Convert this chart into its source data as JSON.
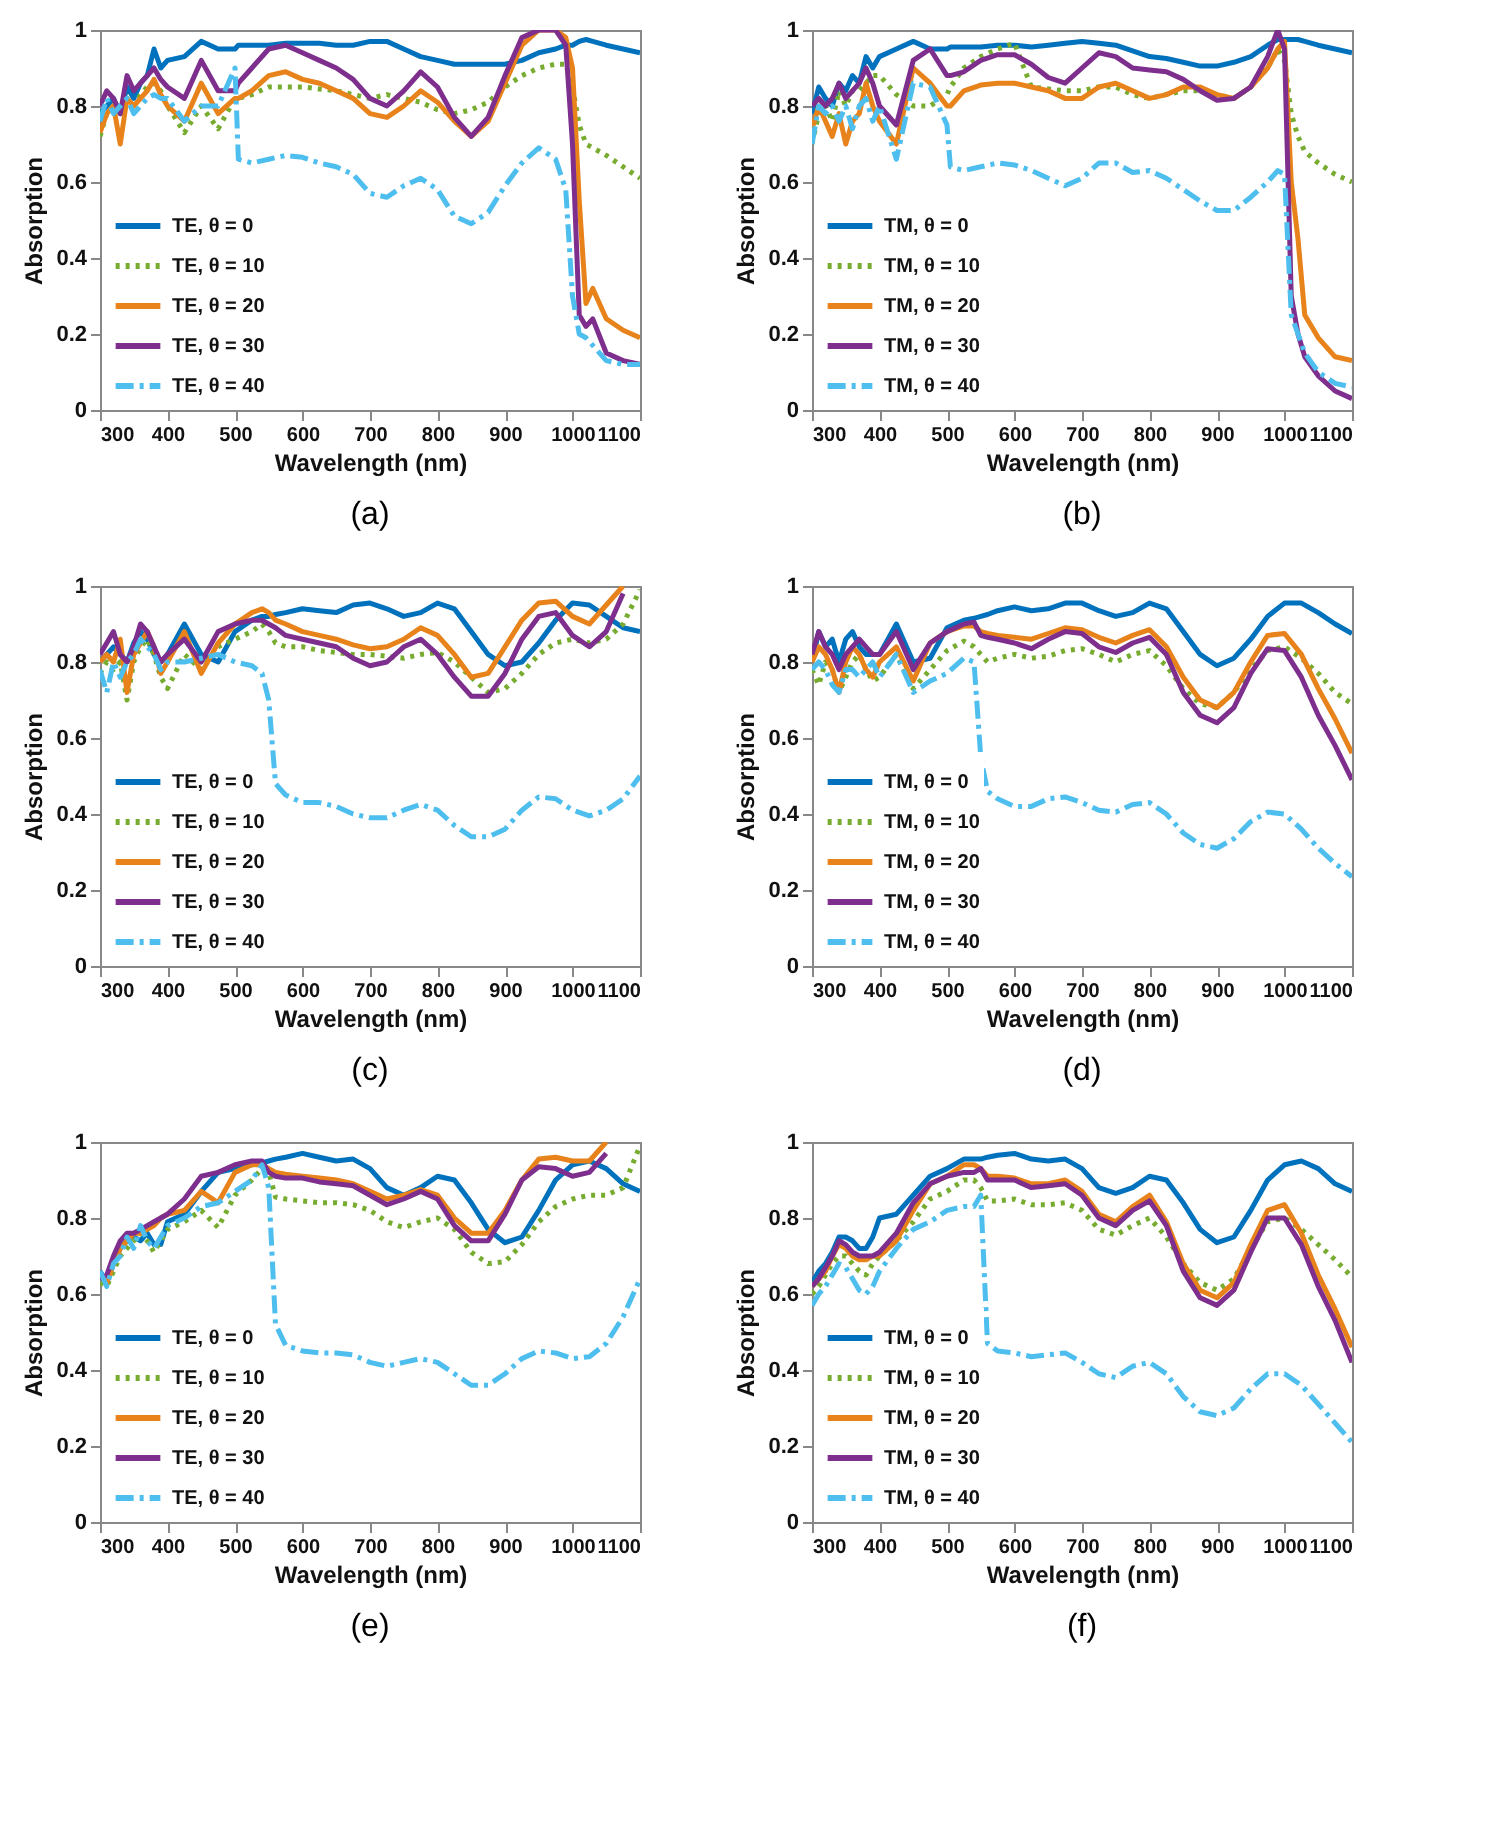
{
  "chart_data": [
    {
      "type": "line",
      "title": "(a)",
      "xlabel": "Wavelength (nm)",
      "ylabel": "Absorption",
      "xlim": [
        300,
        1100
      ],
      "ylim": [
        0,
        1
      ],
      "xticks": [
        300,
        400,
        500,
        600,
        700,
        800,
        900,
        1000,
        1100
      ],
      "yticks": [
        0,
        0.2,
        0.4,
        0.6,
        0.8,
        1
      ],
      "legend": "bottom left",
      "x": [
        300,
        310,
        320,
        330,
        340,
        350,
        360,
        370,
        380,
        390,
        400,
        425,
        450,
        475,
        500,
        505,
        525,
        550,
        575,
        600,
        625,
        650,
        675,
        700,
        725,
        750,
        775,
        800,
        825,
        850,
        875,
        900,
        925,
        950,
        975,
        990,
        1000,
        1010,
        1020,
        1030,
        1050,
        1075,
        1100
      ],
      "series": [
        {
          "name": "TE, θ = 0",
          "color": "#0072bd",
          "line_style": "solid",
          "values": [
            0.78,
            0.8,
            0.82,
            0.78,
            0.85,
            0.82,
            0.86,
            0.88,
            0.95,
            0.9,
            0.92,
            0.93,
            0.97,
            0.95,
            0.95,
            0.96,
            0.96,
            0.96,
            0.965,
            0.965,
            0.965,
            0.96,
            0.96,
            0.97,
            0.97,
            0.95,
            0.93,
            0.92,
            0.91,
            0.91,
            0.91,
            0.91,
            0.92,
            0.94,
            0.95,
            0.96,
            0.96,
            0.97,
            0.975,
            0.97,
            0.96,
            0.95,
            0.94
          ]
        },
        {
          "name": "TE, θ = 10",
          "color": "#77ac30",
          "line_style": "dotted",
          "values": [
            0.72,
            0.78,
            0.8,
            0.78,
            0.82,
            0.8,
            0.83,
            0.85,
            0.86,
            0.84,
            0.8,
            0.73,
            0.8,
            0.74,
            0.82,
            0.82,
            0.83,
            0.85,
            0.85,
            0.85,
            0.845,
            0.84,
            0.83,
            0.82,
            0.83,
            0.82,
            0.81,
            0.79,
            0.78,
            0.79,
            0.81,
            0.85,
            0.88,
            0.9,
            0.91,
            0.91,
            0.85,
            0.75,
            0.7,
            0.69,
            0.67,
            0.64,
            0.61
          ]
        },
        {
          "name": "TE, θ = 20",
          "color": "#e8821a",
          "line_style": "solid",
          "values": [
            0.73,
            0.78,
            0.8,
            0.7,
            0.82,
            0.8,
            0.82,
            0.84,
            0.87,
            0.83,
            0.8,
            0.76,
            0.86,
            0.78,
            0.82,
            0.82,
            0.84,
            0.88,
            0.89,
            0.87,
            0.86,
            0.84,
            0.82,
            0.78,
            0.77,
            0.8,
            0.84,
            0.81,
            0.76,
            0.72,
            0.76,
            0.86,
            0.96,
            1.0,
            1.0,
            0.98,
            0.9,
            0.55,
            0.28,
            0.32,
            0.24,
            0.21,
            0.19
          ]
        },
        {
          "name": "TE, θ = 30",
          "color": "#7e2f8e",
          "line_style": "solid",
          "values": [
            0.8,
            0.84,
            0.82,
            0.78,
            0.88,
            0.84,
            0.86,
            0.88,
            0.9,
            0.87,
            0.85,
            0.82,
            0.92,
            0.84,
            0.84,
            0.86,
            0.9,
            0.95,
            0.96,
            0.94,
            0.92,
            0.9,
            0.87,
            0.82,
            0.8,
            0.84,
            0.89,
            0.85,
            0.77,
            0.72,
            0.77,
            0.88,
            0.98,
            1.0,
            1.0,
            0.96,
            0.7,
            0.25,
            0.22,
            0.24,
            0.15,
            0.13,
            0.12
          ]
        },
        {
          "name": "TE, θ = 40",
          "color": "#4dbeee",
          "line_style": "dashed",
          "values": [
            0.76,
            0.82,
            0.78,
            0.8,
            0.82,
            0.78,
            0.8,
            0.82,
            0.83,
            0.82,
            0.82,
            0.76,
            0.8,
            0.8,
            0.9,
            0.66,
            0.65,
            0.66,
            0.67,
            0.665,
            0.65,
            0.64,
            0.62,
            0.57,
            0.56,
            0.59,
            0.61,
            0.58,
            0.51,
            0.49,
            0.52,
            0.59,
            0.65,
            0.69,
            0.66,
            0.58,
            0.3,
            0.2,
            0.19,
            0.17,
            0.13,
            0.12,
            0.12
          ]
        }
      ]
    },
    {
      "type": "line",
      "title": "(b)",
      "xlabel": "Wavelength (nm)",
      "ylabel": "Absorption",
      "xlim": [
        300,
        1100
      ],
      "ylim": [
        0,
        1
      ],
      "xticks": [
        300,
        400,
        500,
        600,
        700,
        800,
        900,
        1000,
        1100
      ],
      "yticks": [
        0,
        0.2,
        0.4,
        0.6,
        0.8,
        1
      ],
      "legend": "bottom left",
      "x": [
        300,
        310,
        320,
        330,
        340,
        350,
        360,
        370,
        380,
        390,
        400,
        425,
        450,
        475,
        500,
        505,
        525,
        550,
        575,
        600,
        625,
        650,
        675,
        700,
        725,
        750,
        775,
        800,
        825,
        850,
        875,
        900,
        925,
        950,
        975,
        990,
        1000,
        1010,
        1020,
        1030,
        1050,
        1075,
        1100
      ],
      "series": [
        {
          "name": "TM, θ = 0",
          "color": "#0072bd",
          "line_style": "solid",
          "values": [
            0.78,
            0.85,
            0.82,
            0.8,
            0.86,
            0.84,
            0.88,
            0.86,
            0.93,
            0.9,
            0.93,
            0.95,
            0.97,
            0.95,
            0.95,
            0.955,
            0.955,
            0.955,
            0.96,
            0.96,
            0.955,
            0.96,
            0.965,
            0.97,
            0.965,
            0.96,
            0.945,
            0.93,
            0.925,
            0.915,
            0.905,
            0.905,
            0.915,
            0.93,
            0.96,
            0.975,
            0.975,
            0.975,
            0.975,
            0.97,
            0.96,
            0.95,
            0.94
          ]
        },
        {
          "name": "TM, θ = 10",
          "color": "#77ac30",
          "line_style": "dotted",
          "values": [
            0.7,
            0.78,
            0.8,
            0.76,
            0.84,
            0.8,
            0.84,
            0.84,
            0.86,
            0.88,
            0.88,
            0.83,
            0.8,
            0.8,
            0.83,
            0.85,
            0.9,
            0.93,
            0.95,
            0.965,
            0.85,
            0.845,
            0.84,
            0.84,
            0.85,
            0.85,
            0.83,
            0.82,
            0.83,
            0.84,
            0.84,
            0.83,
            0.82,
            0.85,
            0.9,
            0.95,
            0.92,
            0.78,
            0.72,
            0.68,
            0.65,
            0.62,
            0.6
          ]
        },
        {
          "name": "TM, θ = 20",
          "color": "#e8821a",
          "line_style": "solid",
          "values": [
            0.74,
            0.8,
            0.76,
            0.72,
            0.78,
            0.7,
            0.76,
            0.78,
            0.86,
            0.8,
            0.76,
            0.7,
            0.9,
            0.86,
            0.8,
            0.8,
            0.84,
            0.855,
            0.86,
            0.86,
            0.85,
            0.84,
            0.82,
            0.82,
            0.85,
            0.86,
            0.84,
            0.82,
            0.83,
            0.85,
            0.85,
            0.83,
            0.82,
            0.85,
            0.9,
            0.95,
            0.97,
            0.6,
            0.45,
            0.25,
            0.19,
            0.14,
            0.13
          ]
        },
        {
          "name": "TM, θ = 30",
          "color": "#7e2f8e",
          "line_style": "solid",
          "values": [
            0.8,
            0.82,
            0.8,
            0.82,
            0.86,
            0.82,
            0.84,
            0.86,
            0.9,
            0.86,
            0.8,
            0.75,
            0.92,
            0.95,
            0.88,
            0.88,
            0.89,
            0.92,
            0.935,
            0.935,
            0.91,
            0.875,
            0.86,
            0.9,
            0.94,
            0.93,
            0.9,
            0.895,
            0.89,
            0.87,
            0.84,
            0.815,
            0.82,
            0.85,
            0.93,
            1.0,
            0.95,
            0.3,
            0.2,
            0.14,
            0.09,
            0.05,
            0.03
          ]
        },
        {
          "name": "TM, θ = 40",
          "color": "#4dbeee",
          "line_style": "dashed",
          "values": [
            0.7,
            0.8,
            0.78,
            0.8,
            0.76,
            0.8,
            0.74,
            0.8,
            0.82,
            0.76,
            0.8,
            0.66,
            0.86,
            0.85,
            0.75,
            0.64,
            0.63,
            0.64,
            0.65,
            0.645,
            0.63,
            0.61,
            0.59,
            0.61,
            0.65,
            0.65,
            0.625,
            0.63,
            0.61,
            0.58,
            0.55,
            0.525,
            0.525,
            0.56,
            0.6,
            0.63,
            0.62,
            0.25,
            0.2,
            0.15,
            0.1,
            0.07,
            0.06
          ]
        }
      ]
    },
    {
      "type": "line",
      "title": "(c)",
      "xlabel": "Wavelength (nm)",
      "ylabel": "Absorption",
      "xlim": [
        300,
        1100
      ],
      "ylim": [
        0,
        1
      ],
      "xticks": [
        300,
        400,
        500,
        600,
        700,
        800,
        900,
        1000,
        1100
      ],
      "yticks": [
        0,
        0.2,
        0.4,
        0.6,
        0.8,
        1
      ],
      "legend": "bottom left",
      "x": [
        300,
        310,
        320,
        330,
        340,
        350,
        360,
        370,
        380,
        390,
        400,
        425,
        450,
        475,
        500,
        525,
        540,
        550,
        560,
        575,
        600,
        625,
        650,
        675,
        700,
        725,
        750,
        775,
        800,
        825,
        850,
        875,
        900,
        925,
        950,
        975,
        1000,
        1025,
        1050,
        1075,
        1100
      ],
      "series": [
        {
          "name": "TE, θ = 0",
          "color": "#0072bd",
          "line_style": "solid",
          "values": [
            0.8,
            0.82,
            0.84,
            0.82,
            0.8,
            0.85,
            0.88,
            0.86,
            0.82,
            0.8,
            0.82,
            0.9,
            0.82,
            0.8,
            0.88,
            0.91,
            0.92,
            0.92,
            0.925,
            0.93,
            0.94,
            0.935,
            0.93,
            0.95,
            0.955,
            0.94,
            0.92,
            0.93,
            0.955,
            0.94,
            0.88,
            0.82,
            0.79,
            0.8,
            0.85,
            0.91,
            0.955,
            0.95,
            0.92,
            0.89,
            0.88
          ]
        },
        {
          "name": "TE, θ = 10",
          "color": "#77ac30",
          "line_style": "dotted",
          "values": [
            0.77,
            0.8,
            0.78,
            0.8,
            0.7,
            0.8,
            0.84,
            0.86,
            0.82,
            0.76,
            0.73,
            0.82,
            0.78,
            0.84,
            0.86,
            0.88,
            0.9,
            0.88,
            0.85,
            0.84,
            0.84,
            0.83,
            0.825,
            0.82,
            0.82,
            0.815,
            0.81,
            0.82,
            0.825,
            0.8,
            0.76,
            0.72,
            0.73,
            0.77,
            0.82,
            0.85,
            0.86,
            0.85,
            0.86,
            0.9,
            0.99
          ]
        },
        {
          "name": "TE, θ = 20",
          "color": "#e8821a",
          "line_style": "solid",
          "values": [
            0.8,
            0.82,
            0.8,
            0.86,
            0.72,
            0.82,
            0.85,
            0.88,
            0.84,
            0.77,
            0.8,
            0.88,
            0.77,
            0.85,
            0.9,
            0.93,
            0.94,
            0.93,
            0.91,
            0.9,
            0.88,
            0.87,
            0.86,
            0.845,
            0.835,
            0.84,
            0.86,
            0.89,
            0.87,
            0.82,
            0.76,
            0.77,
            0.84,
            0.91,
            0.955,
            0.96,
            0.92,
            0.9,
            0.95,
            1.0,
            null
          ]
        },
        {
          "name": "TE, θ = 30",
          "color": "#7e2f8e",
          "line_style": "solid",
          "values": [
            0.82,
            0.85,
            0.88,
            0.82,
            0.8,
            0.84,
            0.9,
            0.88,
            0.84,
            0.8,
            0.82,
            0.86,
            0.8,
            0.88,
            0.9,
            0.91,
            0.91,
            0.9,
            0.89,
            0.87,
            0.86,
            0.85,
            0.84,
            0.81,
            0.79,
            0.8,
            0.84,
            0.86,
            0.82,
            0.76,
            0.71,
            0.71,
            0.77,
            0.86,
            0.92,
            0.93,
            0.87,
            0.84,
            0.88,
            0.98,
            null
          ]
        },
        {
          "name": "TE, θ = 40",
          "color": "#4dbeee",
          "line_style": "dashed",
          "values": [
            0.78,
            0.72,
            0.8,
            0.76,
            0.8,
            0.82,
            0.86,
            0.84,
            0.82,
            0.78,
            0.8,
            0.8,
            0.81,
            0.82,
            0.8,
            0.79,
            0.77,
            0.7,
            0.48,
            0.45,
            0.43,
            0.43,
            0.42,
            0.4,
            0.39,
            0.39,
            0.41,
            0.425,
            0.41,
            0.37,
            0.34,
            0.34,
            0.36,
            0.41,
            0.445,
            0.44,
            0.41,
            0.395,
            0.41,
            0.44,
            0.5
          ]
        }
      ]
    },
    {
      "type": "line",
      "title": "(d)",
      "xlabel": "Wavelength (nm)",
      "ylabel": "Absorption",
      "xlim": [
        300,
        1100
      ],
      "ylim": [
        0,
        1
      ],
      "xticks": [
        300,
        400,
        500,
        600,
        700,
        800,
        900,
        1000,
        1100
      ],
      "yticks": [
        0,
        0.2,
        0.4,
        0.6,
        0.8,
        1
      ],
      "legend": "bottom left",
      "x": [
        300,
        310,
        320,
        330,
        340,
        350,
        360,
        370,
        380,
        390,
        400,
        425,
        450,
        475,
        500,
        525,
        540,
        550,
        560,
        575,
        600,
        625,
        650,
        675,
        700,
        725,
        750,
        775,
        800,
        825,
        850,
        875,
        900,
        925,
        950,
        975,
        1000,
        1025,
        1050,
        1075,
        1100
      ],
      "series": [
        {
          "name": "TM, θ = 0",
          "color": "#0072bd",
          "line_style": "solid",
          "values": [
            0.8,
            0.88,
            0.84,
            0.86,
            0.8,
            0.86,
            0.88,
            0.84,
            0.82,
            0.82,
            0.82,
            0.9,
            0.8,
            0.81,
            0.89,
            0.91,
            0.915,
            0.92,
            0.925,
            0.935,
            0.945,
            0.935,
            0.94,
            0.955,
            0.955,
            0.935,
            0.92,
            0.93,
            0.955,
            0.94,
            0.88,
            0.82,
            0.79,
            0.81,
            0.86,
            0.92,
            0.955,
            0.955,
            0.93,
            0.9,
            0.875
          ]
        },
        {
          "name": "TM, θ = 10",
          "color": "#77ac30",
          "line_style": "dotted",
          "values": [
            0.78,
            0.74,
            0.8,
            0.78,
            0.72,
            0.76,
            0.8,
            0.82,
            0.78,
            0.75,
            0.76,
            0.82,
            0.73,
            0.78,
            0.83,
            0.855,
            0.84,
            0.82,
            0.8,
            0.81,
            0.82,
            0.81,
            0.815,
            0.83,
            0.835,
            0.82,
            0.8,
            0.82,
            0.83,
            0.79,
            0.73,
            0.69,
            0.68,
            0.72,
            0.78,
            0.83,
            0.84,
            0.81,
            0.77,
            0.72,
            0.69
          ]
        },
        {
          "name": "TM, θ = 20",
          "color": "#e8821a",
          "line_style": "solid",
          "values": [
            0.8,
            0.84,
            0.82,
            0.78,
            0.72,
            0.8,
            0.84,
            0.82,
            0.78,
            0.76,
            0.8,
            0.84,
            0.75,
            0.85,
            0.88,
            0.895,
            0.895,
            0.88,
            0.875,
            0.87,
            0.865,
            0.86,
            0.875,
            0.89,
            0.885,
            0.865,
            0.85,
            0.87,
            0.885,
            0.84,
            0.76,
            0.7,
            0.68,
            0.72,
            0.8,
            0.87,
            0.875,
            0.82,
            0.73,
            0.65,
            0.56
          ]
        },
        {
          "name": "TM, θ = 30",
          "color": "#7e2f8e",
          "line_style": "solid",
          "values": [
            0.82,
            0.88,
            0.84,
            0.82,
            0.78,
            0.82,
            0.84,
            0.86,
            0.84,
            0.82,
            0.82,
            0.88,
            0.78,
            0.85,
            0.88,
            0.9,
            0.905,
            0.87,
            0.865,
            0.86,
            0.85,
            0.835,
            0.86,
            0.88,
            0.875,
            0.84,
            0.825,
            0.85,
            0.865,
            0.82,
            0.72,
            0.66,
            0.64,
            0.68,
            0.77,
            0.835,
            0.83,
            0.76,
            0.66,
            0.58,
            0.49
          ]
        },
        {
          "name": "TM, θ = 40",
          "color": "#4dbeee",
          "line_style": "dashed",
          "values": [
            0.78,
            0.8,
            0.78,
            0.74,
            0.72,
            0.78,
            0.78,
            0.76,
            0.78,
            0.8,
            0.76,
            0.82,
            0.72,
            0.75,
            0.77,
            0.81,
            0.8,
            0.55,
            0.46,
            0.44,
            0.42,
            0.42,
            0.44,
            0.445,
            0.43,
            0.41,
            0.405,
            0.425,
            0.43,
            0.4,
            0.35,
            0.32,
            0.31,
            0.335,
            0.38,
            0.405,
            0.4,
            0.36,
            0.31,
            0.27,
            0.235
          ]
        }
      ]
    },
    {
      "type": "line",
      "title": "(e)",
      "xlabel": "Wavelength (nm)",
      "ylabel": "Absorption",
      "xlim": [
        300,
        1100
      ],
      "ylim": [
        0,
        1
      ],
      "xticks": [
        300,
        400,
        500,
        600,
        700,
        800,
        900,
        1000,
        1100
      ],
      "yticks": [
        0,
        0.2,
        0.4,
        0.6,
        0.8,
        1
      ],
      "legend": "bottom left",
      "x": [
        300,
        310,
        320,
        330,
        340,
        350,
        360,
        370,
        380,
        390,
        400,
        425,
        450,
        475,
        500,
        525,
        540,
        550,
        560,
        575,
        600,
        625,
        650,
        675,
        700,
        725,
        750,
        775,
        800,
        825,
        850,
        875,
        900,
        925,
        950,
        975,
        1000,
        1025,
        1050,
        1075,
        1100
      ],
      "series": [
        {
          "name": "TE, θ = 0",
          "color": "#0072bd",
          "line_style": "solid",
          "values": [
            0.66,
            0.63,
            0.68,
            0.72,
            0.74,
            0.75,
            0.74,
            0.76,
            0.73,
            0.73,
            0.79,
            0.81,
            0.87,
            0.92,
            0.93,
            0.94,
            0.945,
            0.95,
            0.955,
            0.96,
            0.97,
            0.96,
            0.95,
            0.955,
            0.93,
            0.88,
            0.86,
            0.88,
            0.91,
            0.9,
            0.84,
            0.77,
            0.735,
            0.75,
            0.82,
            0.9,
            0.94,
            0.95,
            0.93,
            0.89,
            0.87
          ]
        },
        {
          "name": "TE, θ = 10",
          "color": "#77ac30",
          "line_style": "dotted",
          "values": [
            0.63,
            0.62,
            0.66,
            0.7,
            0.72,
            0.74,
            0.76,
            0.74,
            0.71,
            0.74,
            0.77,
            0.79,
            0.82,
            0.775,
            0.86,
            0.9,
            0.93,
            0.92,
            0.855,
            0.85,
            0.845,
            0.84,
            0.84,
            0.835,
            0.82,
            0.79,
            0.775,
            0.79,
            0.8,
            0.77,
            0.71,
            0.68,
            0.685,
            0.73,
            0.79,
            0.83,
            0.85,
            0.86,
            0.86,
            0.88,
            0.99
          ]
        },
        {
          "name": "TE, θ = 20",
          "color": "#e8821a",
          "line_style": "solid",
          "values": [
            0.65,
            0.63,
            0.68,
            0.72,
            0.74,
            0.76,
            0.76,
            0.77,
            0.78,
            0.8,
            0.81,
            0.82,
            0.87,
            0.84,
            0.92,
            0.94,
            0.94,
            0.93,
            0.92,
            0.915,
            0.91,
            0.905,
            0.9,
            0.89,
            0.87,
            0.85,
            0.86,
            0.875,
            0.86,
            0.8,
            0.76,
            0.76,
            0.82,
            0.9,
            0.955,
            0.96,
            0.95,
            0.95,
            1.0,
            null,
            null
          ]
        },
        {
          "name": "TE, θ = 30",
          "color": "#7e2f8e",
          "line_style": "solid",
          "values": [
            0.64,
            0.65,
            0.7,
            0.74,
            0.76,
            0.76,
            0.77,
            0.78,
            0.79,
            0.8,
            0.81,
            0.85,
            0.91,
            0.92,
            0.94,
            0.95,
            0.95,
            0.92,
            0.91,
            0.905,
            0.905,
            0.895,
            0.89,
            0.885,
            0.86,
            0.835,
            0.85,
            0.87,
            0.85,
            0.78,
            0.74,
            0.74,
            0.81,
            0.9,
            0.935,
            0.93,
            0.91,
            0.92,
            0.97,
            null,
            null
          ]
        },
        {
          "name": "TE, θ = 40",
          "color": "#4dbeee",
          "line_style": "dashed",
          "values": [
            0.66,
            0.62,
            0.68,
            0.7,
            0.75,
            0.72,
            0.78,
            0.74,
            0.72,
            0.75,
            0.78,
            0.8,
            0.83,
            0.84,
            0.87,
            0.9,
            0.94,
            0.88,
            0.52,
            0.465,
            0.45,
            0.445,
            0.445,
            0.44,
            0.42,
            0.41,
            0.42,
            0.43,
            0.42,
            0.39,
            0.36,
            0.36,
            0.39,
            0.43,
            0.45,
            0.445,
            0.43,
            0.435,
            0.47,
            0.54,
            0.64
          ]
        }
      ]
    },
    {
      "type": "line",
      "title": "(f)",
      "xlabel": "Wavelength (nm)",
      "ylabel": "Absorption",
      "xlim": [
        300,
        1100
      ],
      "ylim": [
        0,
        1
      ],
      "xticks": [
        300,
        400,
        500,
        600,
        700,
        800,
        900,
        1000,
        1100
      ],
      "yticks": [
        0,
        0.2,
        0.4,
        0.6,
        0.8,
        1
      ],
      "legend": "bottom left",
      "x": [
        300,
        310,
        320,
        330,
        340,
        350,
        360,
        370,
        380,
        390,
        400,
        425,
        450,
        475,
        500,
        525,
        540,
        550,
        560,
        575,
        600,
        625,
        650,
        675,
        700,
        725,
        750,
        775,
        800,
        825,
        850,
        875,
        900,
        925,
        950,
        975,
        1000,
        1025,
        1050,
        1075,
        1100
      ],
      "series": [
        {
          "name": "TM, θ = 0",
          "color": "#0072bd",
          "line_style": "solid",
          "values": [
            0.63,
            0.66,
            0.68,
            0.71,
            0.75,
            0.75,
            0.74,
            0.72,
            0.72,
            0.75,
            0.8,
            0.81,
            0.86,
            0.91,
            0.93,
            0.955,
            0.955,
            0.955,
            0.96,
            0.965,
            0.97,
            0.955,
            0.95,
            0.955,
            0.93,
            0.88,
            0.865,
            0.88,
            0.91,
            0.9,
            0.84,
            0.77,
            0.735,
            0.75,
            0.82,
            0.9,
            0.94,
            0.95,
            0.93,
            0.89,
            0.87
          ]
        },
        {
          "name": "TM, θ = 10",
          "color": "#77ac30",
          "line_style": "dotted",
          "values": [
            0.6,
            0.62,
            0.65,
            0.68,
            0.7,
            0.7,
            0.68,
            0.66,
            0.65,
            0.68,
            0.7,
            0.74,
            0.79,
            0.85,
            0.87,
            0.9,
            0.9,
            0.88,
            0.845,
            0.845,
            0.85,
            0.835,
            0.835,
            0.84,
            0.82,
            0.77,
            0.755,
            0.78,
            0.8,
            0.75,
            0.68,
            0.63,
            0.61,
            0.64,
            0.72,
            0.79,
            0.8,
            0.77,
            0.73,
            0.69,
            0.645
          ]
        },
        {
          "name": "TM, θ = 20",
          "color": "#e8821a",
          "line_style": "solid",
          "values": [
            0.62,
            0.64,
            0.66,
            0.7,
            0.73,
            0.72,
            0.7,
            0.69,
            0.69,
            0.7,
            0.7,
            0.74,
            0.82,
            0.89,
            0.91,
            0.94,
            0.94,
            0.93,
            0.91,
            0.91,
            0.905,
            0.89,
            0.89,
            0.9,
            0.87,
            0.81,
            0.79,
            0.83,
            0.86,
            0.79,
            0.68,
            0.61,
            0.59,
            0.63,
            0.73,
            0.82,
            0.835,
            0.76,
            0.65,
            0.56,
            0.46
          ]
        },
        {
          "name": "TM, θ = 30",
          "color": "#7e2f8e",
          "line_style": "solid",
          "values": [
            0.62,
            0.64,
            0.67,
            0.7,
            0.74,
            0.73,
            0.71,
            0.7,
            0.7,
            0.7,
            0.71,
            0.76,
            0.84,
            0.89,
            0.91,
            0.92,
            0.92,
            0.93,
            0.9,
            0.9,
            0.9,
            0.88,
            0.885,
            0.89,
            0.86,
            0.8,
            0.78,
            0.82,
            0.845,
            0.78,
            0.66,
            0.59,
            0.57,
            0.61,
            0.71,
            0.8,
            0.8,
            0.73,
            0.62,
            0.53,
            0.42
          ]
        },
        {
          "name": "TM, θ = 40",
          "color": "#4dbeee",
          "line_style": "dashed",
          "values": [
            0.57,
            0.6,
            0.62,
            0.65,
            0.68,
            0.67,
            0.64,
            0.61,
            0.6,
            0.62,
            0.66,
            0.72,
            0.77,
            0.79,
            0.82,
            0.83,
            0.83,
            0.86,
            0.47,
            0.45,
            0.445,
            0.435,
            0.44,
            0.445,
            0.42,
            0.39,
            0.38,
            0.41,
            0.42,
            0.39,
            0.33,
            0.29,
            0.28,
            0.3,
            0.35,
            0.39,
            0.39,
            0.36,
            0.31,
            0.26,
            0.21
          ]
        }
      ]
    }
  ]
}
